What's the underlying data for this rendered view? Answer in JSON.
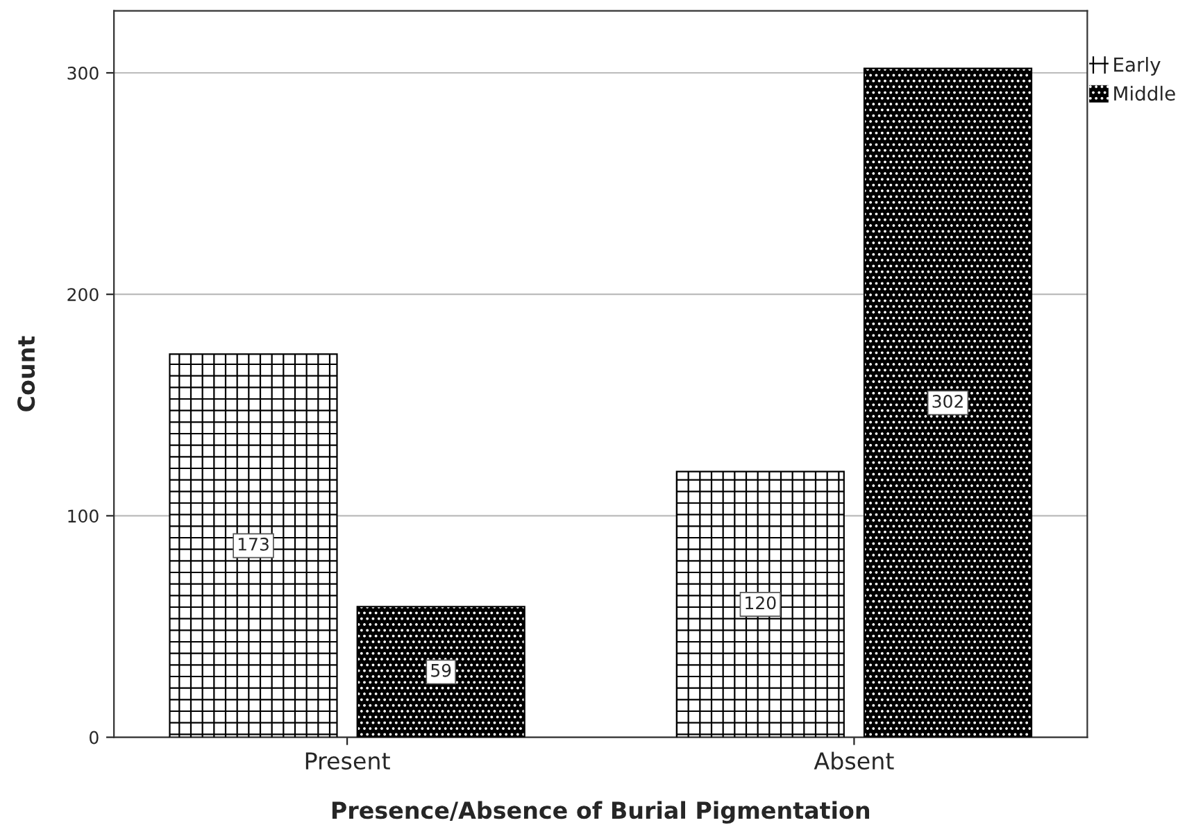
{
  "chart_data": {
    "type": "bar",
    "xlabel": "Presence/Absence of Burial Pigmentation",
    "ylabel": "Count",
    "categories": [
      "Present",
      "Absent"
    ],
    "series": [
      {
        "name": "Early",
        "color": "#ffffff",
        "values": [
          173,
          120
        ]
      },
      {
        "name": "Middle",
        "color": "#000000",
        "values": [
          59,
          302
        ]
      }
    ],
    "ylim": [
      0,
      328
    ],
    "yticks": [
      0,
      100,
      200,
      300
    ],
    "grid": "y",
    "legend": "top right",
    "data_labels": true
  }
}
